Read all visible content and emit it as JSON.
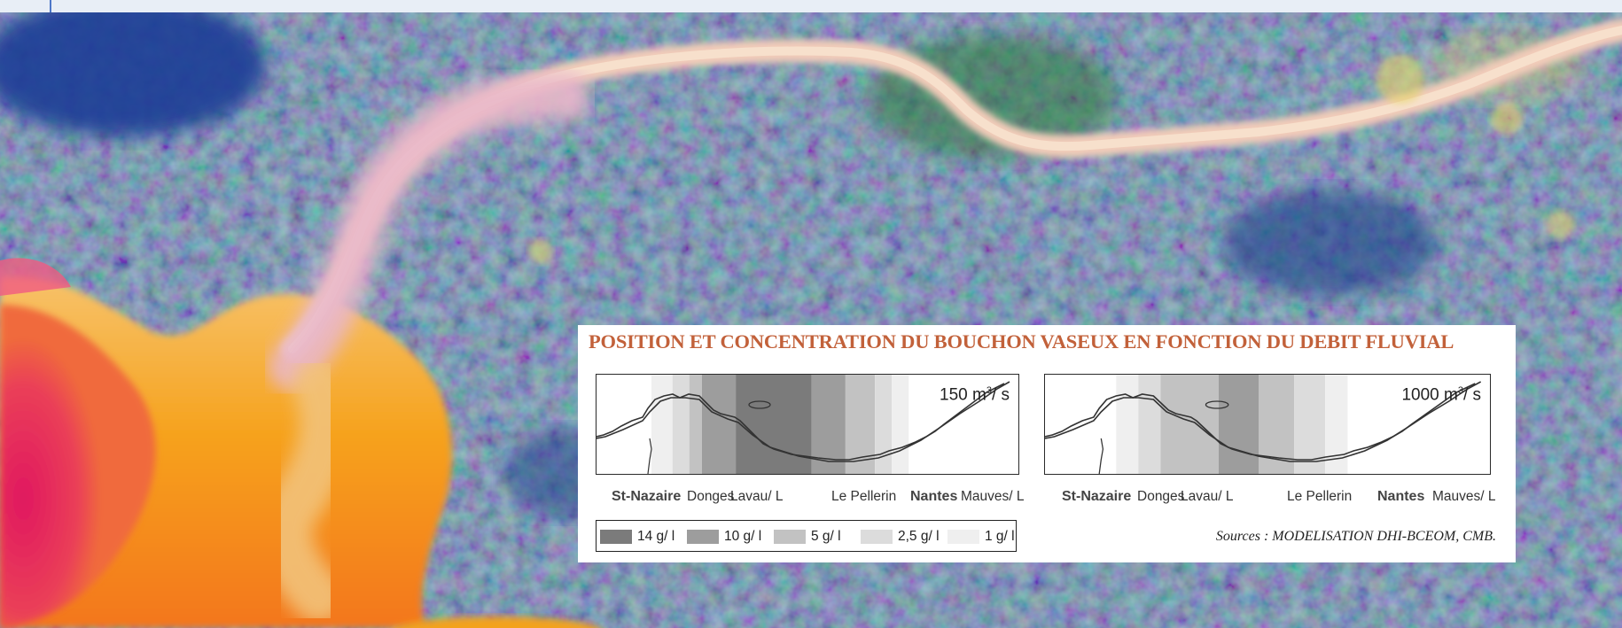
{
  "figure": {
    "title": "POSITION ET CONCENTRATION DU BOUCHON VASEUX EN FONCTION DU DEBIT FLUVIAL",
    "colors": {
      "title": "#c2613a",
      "river": "#f0c7b4",
      "sea_plume": "#f6a21d",
      "land": "#4f7aa2"
    }
  },
  "panels": [
    {
      "flow_value": "150 m",
      "flow_exp": "3",
      "flow_unit": "/ s",
      "concentration_bands_g_per_l": [
        1,
        2.5,
        5,
        10,
        14,
        10,
        5,
        2.5,
        1
      ],
      "places": {
        "st_nazaire": "St-Nazaire",
        "donges": "Donges",
        "lavau": "Lavau/ L",
        "le_pellerin": "Le Pellerin",
        "nantes": "Nantes",
        "mauves": "Mauves/ L"
      }
    },
    {
      "flow_value": "1000 m",
      "flow_exp": "3",
      "flow_unit": "/ s",
      "concentration_bands_g_per_l": [
        1,
        2.5,
        5,
        10,
        5,
        2.5,
        1
      ],
      "places": {
        "st_nazaire": "St-Nazaire",
        "donges": "Donges",
        "lavau": "Lavau/ L",
        "le_pellerin": "Le Pellerin",
        "nantes": "Nantes",
        "mauves": "Mauves/ L"
      }
    }
  ],
  "legend": [
    {
      "label": "14 g/ l",
      "color": "#7b7b7b"
    },
    {
      "label": "10 g/ l",
      "color": "#9d9d9d"
    },
    {
      "label": "5 g/ l",
      "color": "#c2c2c2"
    },
    {
      "label": "2,5 g/ l",
      "color": "#dcdcdc"
    },
    {
      "label": "1 g/ l",
      "color": "#efefef"
    }
  ],
  "sources": "Sources : MODELISATION DHI-BCEOM, CMB."
}
